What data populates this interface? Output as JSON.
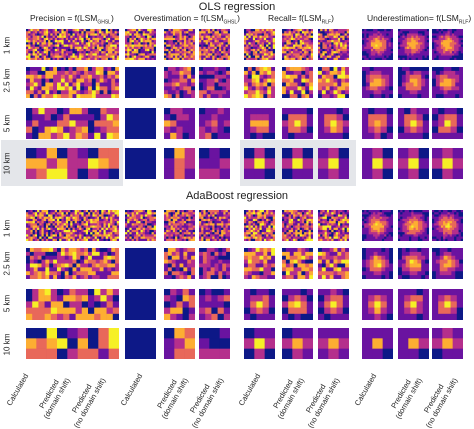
{
  "figure": {
    "sections": [
      {
        "title": "OLS regression",
        "column_groups": [
          {
            "prefix": "Precision = f(LSM",
            "sub": "GHSL",
            "suffix": ")"
          },
          {
            "prefix": "Overestimation = f(LSM",
            "sub": "GHSL",
            "suffix": ")"
          },
          {
            "prefix": "Recall= f(LSM",
            "sub": "RLF",
            "suffix": ")"
          },
          {
            "prefix": "Underestimation= f(LSM",
            "sub": "RLF",
            "suffix": ")"
          }
        ]
      },
      {
        "title": "AdaBoost regression"
      }
    ],
    "row_labels": [
      "1 km",
      "2.5 km",
      "5 km",
      "10 km"
    ],
    "bottom_labels": [
      {
        "line1": "Calculated",
        "line2": ""
      },
      {
        "line1": "Predicted",
        "line2": "(domain shift)"
      },
      {
        "line1": "Predicted",
        "line2": "(no domain shift)"
      }
    ],
    "colormap": [
      "#0d1887",
      "#6a13a0",
      "#b52f8c",
      "#e8685a",
      "#fdae32",
      "#f6f026"
    ]
  }
}
